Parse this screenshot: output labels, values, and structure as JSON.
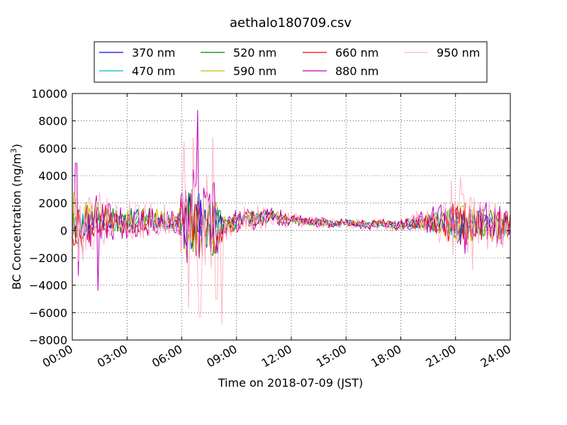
{
  "chart_data": {
    "type": "line",
    "title": "aethalo180709.csv",
    "xlabel": "Time on 2018-07-09 (JST)",
    "ylabel_main": "BC Concentration (ng/m",
    "ylabel_sup": "3",
    "ylabel_close": ")",
    "xlim_hours": [
      0,
      24
    ],
    "ylim": [
      -8000,
      10000
    ],
    "grid": "on (dotted)",
    "legend_placement": "top-center, 4 columns",
    "x_tick_labels": [
      "00:00",
      "03:00",
      "06:00",
      "09:00",
      "12:00",
      "15:00",
      "18:00",
      "21:00",
      "24:00"
    ],
    "y_ticks": [
      -8000,
      -6000,
      -4000,
      -2000,
      0,
      2000,
      4000,
      6000,
      8000,
      10000
    ],
    "y_tick_labels": [
      "−8000",
      "−6000",
      "−4000",
      "−2000",
      "0",
      "2000",
      "4000",
      "6000",
      "8000",
      "10000"
    ],
    "series": [
      {
        "name": "370 nm",
        "color": "#0000ff",
        "amp": 0.45,
        "seed": 11
      },
      {
        "name": "470 nm",
        "color": "#00bfbf",
        "amp": 0.5,
        "seed": 23
      },
      {
        "name": "520 nm",
        "color": "#008000",
        "amp": 0.55,
        "seed": 37
      },
      {
        "name": "590 nm",
        "color": "#bfbf00",
        "amp": 0.6,
        "seed": 41
      },
      {
        "name": "660 nm",
        "color": "#ff0000",
        "amp": 0.65,
        "seed": 53
      },
      {
        "name": "880 nm",
        "color": "#bf00bf",
        "amp": 0.85,
        "seed": 67
      },
      {
        "name": "950 nm",
        "color": "#ffb6c1",
        "amp": 1.0,
        "seed": 79
      }
    ],
    "envelope": {
      "hours": [
        0,
        0.5,
        1,
        1.5,
        2,
        2.5,
        3,
        3.5,
        4,
        4.5,
        5,
        5.5,
        5.8,
        6,
        6.3,
        6.6,
        6.9,
        7.2,
        7.5,
        7.8,
        8,
        8.3,
        8.6,
        9,
        9.5,
        10,
        10.5,
        11,
        11.5,
        12,
        12.5,
        13,
        13.5,
        14,
        14.5,
        15,
        15.5,
        16,
        16.5,
        17,
        17.5,
        18,
        18.5,
        19,
        19.5,
        20,
        20.5,
        21,
        21.5,
        22,
        22.5,
        23,
        23.5,
        24
      ],
      "mean": [
        800,
        600,
        700,
        900,
        800,
        600,
        700,
        800,
        900,
        800,
        700,
        600,
        500,
        400,
        500,
        800,
        600,
        400,
        300,
        200,
        100,
        300,
        400,
        600,
        800,
        900,
        1000,
        1000,
        900,
        800,
        700,
        600,
        600,
        500,
        500,
        600,
        500,
        400,
        500,
        500,
        400,
        400,
        500,
        600,
        600,
        600,
        500,
        400,
        400,
        500,
        500,
        400,
        300,
        400
      ],
      "spread": [
        3500,
        3000,
        2500,
        2000,
        1800,
        1500,
        1500,
        1800,
        1600,
        1400,
        1300,
        1000,
        900,
        3500,
        4500,
        5000,
        4500,
        3500,
        4000,
        4500,
        3500,
        1200,
        1000,
        1100,
        1000,
        1200,
        900,
        800,
        700,
        600,
        500,
        400,
        500,
        400,
        400,
        400,
        400,
        500,
        500,
        400,
        500,
        600,
        700,
        900,
        1200,
        1500,
        2000,
        2500,
        2500,
        2200,
        2000,
        2000,
        1800,
        1500
      ]
    },
    "peaks": [
      {
        "hour": 0.2,
        "value": 4900,
        "series": "880 nm"
      },
      {
        "hour": 0.3,
        "value": -3300,
        "series": "880 nm"
      },
      {
        "hour": 1.4,
        "value": -4400,
        "series": "880 nm"
      },
      {
        "hour": 6.1,
        "value": 6500,
        "series": "950 nm"
      },
      {
        "hour": 6.4,
        "value": -5700,
        "series": "950 nm"
      },
      {
        "hour": 6.6,
        "value": 6800,
        "series": "950 nm"
      },
      {
        "hour": 6.85,
        "value": 8800,
        "series": "880 nm"
      },
      {
        "hour": 7.0,
        "value": -6300,
        "series": "950 nm"
      },
      {
        "hour": 7.7,
        "value": 6800,
        "series": "950 nm"
      },
      {
        "hour": 7.9,
        "value": -5000,
        "series": "950 nm"
      },
      {
        "hour": 8.2,
        "value": -6900,
        "series": "950 nm"
      },
      {
        "hour": 20.8,
        "value": 3700,
        "series": "950 nm"
      },
      {
        "hour": 21.3,
        "value": 3900,
        "series": "950 nm"
      },
      {
        "hour": 21.9,
        "value": -2900,
        "series": "950 nm"
      }
    ]
  }
}
